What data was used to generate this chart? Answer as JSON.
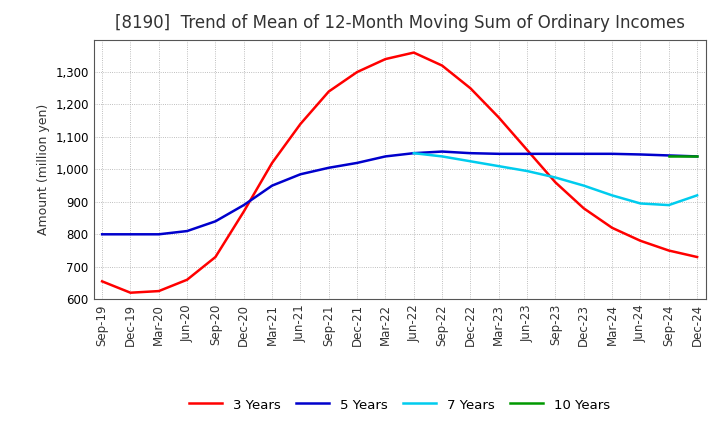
{
  "title": "[8190]  Trend of Mean of 12-Month Moving Sum of Ordinary Incomes",
  "ylabel": "Amount (million yen)",
  "ylim": [
    600,
    1400
  ],
  "yticks": [
    600,
    700,
    800,
    900,
    1000,
    1100,
    1200,
    1300
  ],
  "legend_labels": [
    "3 Years",
    "5 Years",
    "7 Years",
    "10 Years"
  ],
  "legend_colors": [
    "#ff0000",
    "#0000cc",
    "#00ccee",
    "#009900"
  ],
  "x_labels": [
    "Sep-19",
    "Dec-19",
    "Mar-20",
    "Jun-20",
    "Sep-20",
    "Dec-20",
    "Mar-21",
    "Jun-21",
    "Sep-21",
    "Dec-21",
    "Mar-22",
    "Jun-22",
    "Sep-22",
    "Dec-22",
    "Mar-23",
    "Jun-23",
    "Sep-23",
    "Dec-23",
    "Mar-24",
    "Jun-24",
    "Sep-24",
    "Dec-24"
  ],
  "series_3y": [
    655,
    620,
    625,
    660,
    730,
    870,
    1020,
    1140,
    1240,
    1300,
    1340,
    1360,
    1320,
    1250,
    1160,
    1060,
    960,
    880,
    820,
    780,
    750,
    730
  ],
  "series_5y": [
    800,
    800,
    800,
    810,
    840,
    890,
    950,
    985,
    1005,
    1020,
    1040,
    1050,
    1055,
    1050,
    1048,
    1048,
    1048,
    1048,
    1048,
    1046,
    1043,
    1040
  ],
  "series_7y": [
    null,
    null,
    null,
    null,
    null,
    null,
    null,
    null,
    null,
    null,
    null,
    1050,
    1040,
    1025,
    1010,
    995,
    975,
    950,
    920,
    895,
    890,
    920
  ],
  "series_10y": [
    null,
    null,
    null,
    null,
    null,
    null,
    null,
    null,
    null,
    null,
    null,
    null,
    null,
    null,
    null,
    null,
    null,
    null,
    null,
    null,
    1040,
    1040
  ],
  "background_color": "#ffffff",
  "title_fontsize": 12,
  "axis_fontsize": 9,
  "tick_fontsize": 8.5,
  "linewidth": 1.8
}
